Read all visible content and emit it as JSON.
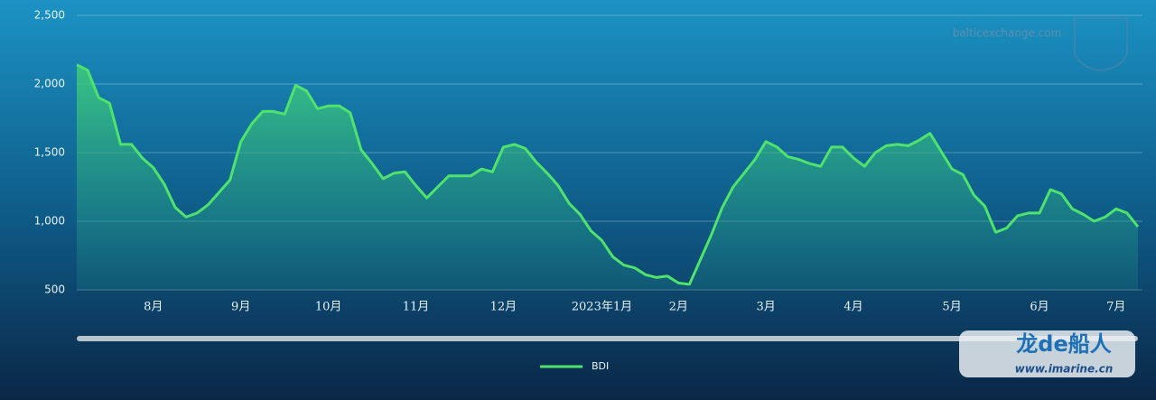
{
  "chart_data": {
    "type": "area",
    "watermark": "balticexchange.com",
    "overlay": {
      "brand": "龙de船人",
      "url": "www.imarine.cn"
    },
    "categories": [
      null,
      null,
      null,
      null,
      null,
      null,
      null,
      "8月",
      null,
      null,
      null,
      null,
      null,
      null,
      null,
      "9月",
      null,
      null,
      null,
      null,
      null,
      null,
      null,
      "10月",
      null,
      null,
      null,
      null,
      null,
      null,
      null,
      "11月",
      null,
      null,
      null,
      null,
      null,
      null,
      null,
      "12月",
      null,
      null,
      null,
      null,
      null,
      null,
      null,
      null,
      "2023年1月",
      null,
      null,
      null,
      null,
      null,
      null,
      "2月",
      null,
      null,
      null,
      null,
      null,
      null,
      null,
      "3月",
      null,
      null,
      null,
      null,
      null,
      null,
      null,
      "4月",
      null,
      null,
      null,
      null,
      null,
      null,
      null,
      null,
      "5月",
      null,
      null,
      null,
      null,
      null,
      null,
      null,
      "6月",
      null,
      null,
      null,
      null,
      null,
      null,
      "7月",
      null,
      null
    ],
    "series": [
      {
        "name": "BDI",
        "color": "#4fe26c",
        "values": [
          2140,
          2100,
          1900,
          1860,
          1560,
          1560,
          1460,
          1390,
          1270,
          1100,
          1030,
          1060,
          1120,
          1210,
          1300,
          1580,
          1710,
          1800,
          1800,
          1780,
          1990,
          1950,
          1820,
          1840,
          1840,
          1790,
          1520,
          1420,
          1310,
          1350,
          1360,
          1260,
          1170,
          1250,
          1330,
          1330,
          1330,
          1380,
          1360,
          1540,
          1560,
          1530,
          1430,
          1350,
          1260,
          1130,
          1050,
          930,
          860,
          740,
          680,
          660,
          610,
          590,
          600,
          550,
          540,
          720,
          900,
          1100,
          1250,
          1350,
          1450,
          1580,
          1540,
          1470,
          1450,
          1420,
          1400,
          1540,
          1540,
          1460,
          1400,
          1500,
          1550,
          1560,
          1550,
          1590,
          1640,
          1510,
          1380,
          1340,
          1190,
          1110,
          920,
          950,
          1040,
          1060,
          1060,
          1230,
          1200,
          1090,
          1050,
          1000,
          1030,
          1090,
          1060,
          960
        ]
      }
    ],
    "ylim": [
      500,
      2500
    ],
    "yticks": [
      500,
      {
        "value": 1000,
        "label": "1,000"
      },
      {
        "value": 1500,
        "label": "1,500"
      },
      {
        "value": 2000,
        "label": "2,000"
      },
      {
        "value": 2500,
        "label": "2,500"
      }
    ],
    "grid": true,
    "legend": "bottom"
  }
}
